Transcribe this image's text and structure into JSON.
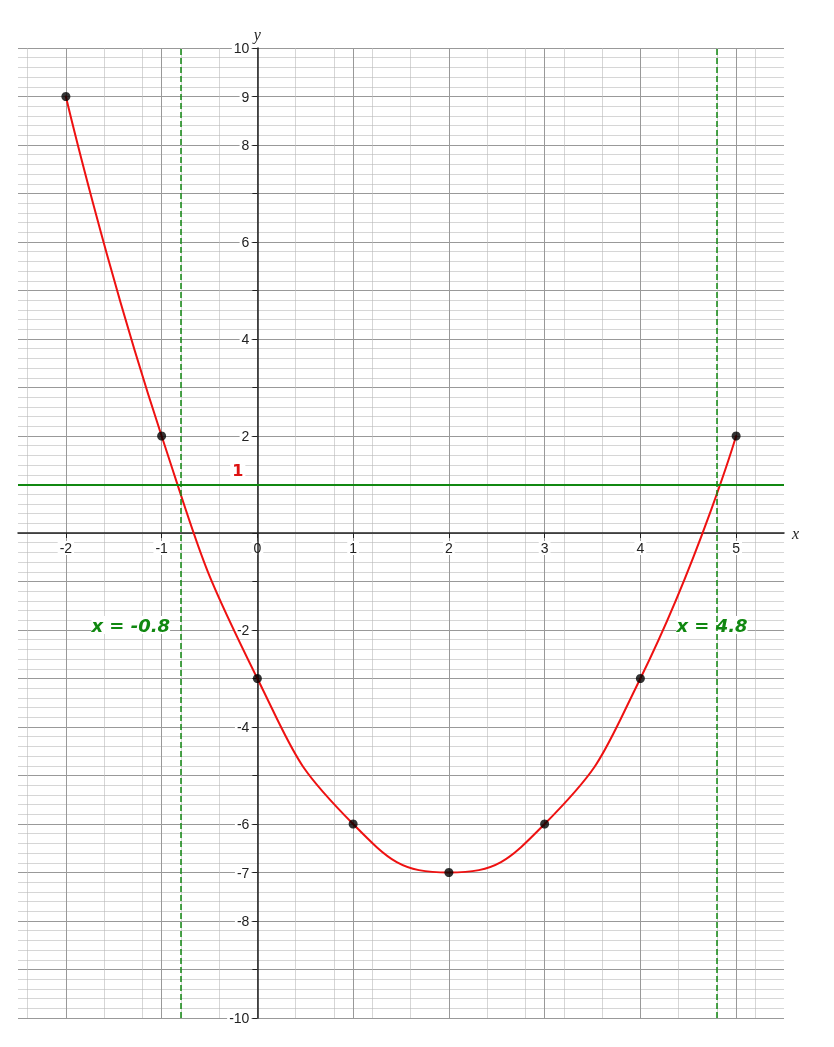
{
  "chart_data": {
    "type": "line",
    "xlabel": "x",
    "ylabel": "y",
    "x": [
      -2,
      -1,
      0,
      1,
      2,
      3,
      4,
      5
    ],
    "series": [
      {
        "type": "line",
        "color": "#ee1111",
        "marker": "none",
        "values": [
          9,
          2,
          -3,
          -6,
          -7,
          -6,
          -3,
          2
        ]
      },
      {
        "type": "scatter",
        "color": "#000000",
        "values": [
          9,
          2,
          -3,
          -6,
          -7,
          -6,
          -3,
          2
        ]
      }
    ],
    "xlim": [
      -2.5,
      5.5
    ],
    "ylim": [
      -10,
      10
    ],
    "xticks": [
      -2,
      -1,
      0,
      1,
      2,
      3,
      4,
      5
    ],
    "yticks": [
      -10,
      {
        "value": -9,
        "label": null
      },
      -8,
      -7,
      -6,
      {
        "value": -5,
        "label": null
      },
      -4,
      {
        "value": -3,
        "label": null
      },
      -2,
      {
        "value": -1,
        "label": null
      },
      {
        "value": 0,
        "label": null
      },
      {
        "value": 1,
        "label": null
      },
      2,
      {
        "value": 3,
        "label": null
      },
      4,
      {
        "value": 5,
        "label": null
      },
      6,
      {
        "value": 7,
        "label": null
      },
      8,
      9,
      10
    ],
    "ref_lines": [
      {
        "axis": "y",
        "value": 1,
        "label": "1",
        "color": "#118811",
        "line_style": "solid"
      },
      {
        "axis": "x",
        "value": -0.8,
        "label": "x = -0.8",
        "color": "#118811",
        "line_style": "dashed"
      },
      {
        "axis": "x",
        "value": 4.8,
        "label": "x = 4.8",
        "color": "#118811",
        "line_style": "dashed"
      }
    ],
    "grid": true,
    "marker": "circle",
    "line_style": "solid"
  }
}
